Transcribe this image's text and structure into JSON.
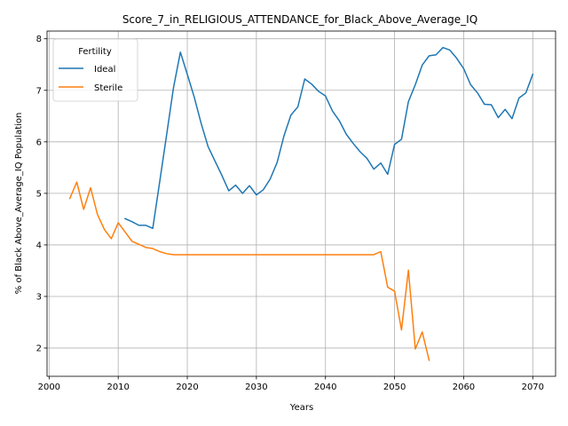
{
  "chart_data": {
    "type": "line",
    "title": "Score_7_in_RELIGIOUS_ATTENDANCE_for_Black_Above_Average_IQ",
    "xlabel": "Years",
    "ylabel": "% of Black Above_Average_IQ Population",
    "xlim": [
      1999.7,
      2073.3
    ],
    "ylim": [
      1.45,
      8.15
    ],
    "xticks": [
      2000,
      2010,
      2020,
      2030,
      2040,
      2050,
      2060,
      2070
    ],
    "yticks": [
      2,
      3,
      4,
      5,
      6,
      7,
      8
    ],
    "grid": true,
    "legend": {
      "title": "Fertility",
      "placement": "top-left"
    },
    "series": [
      {
        "name": "Ideal",
        "color": "#1f77b4",
        "x": [
          2011,
          2012,
          2013,
          2014,
          2015,
          2016,
          2017,
          2018,
          2019,
          2020,
          2021,
          2022,
          2023,
          2024,
          2025,
          2026,
          2027,
          2028,
          2029,
          2030,
          2031,
          2032,
          2033,
          2034,
          2035,
          2036,
          2037,
          2038,
          2039,
          2040,
          2041,
          2042,
          2043,
          2044,
          2045,
          2046,
          2047,
          2048,
          2049,
          2050,
          2051,
          2052,
          2053,
          2054,
          2055,
          2056,
          2057,
          2058,
          2059,
          2060,
          2061,
          2062,
          2063,
          2064,
          2065,
          2066,
          2067,
          2068,
          2069,
          2070
        ],
        "values": [
          4.51,
          4.45,
          4.38,
          4.38,
          4.32,
          5.22,
          6.13,
          7.05,
          7.74,
          7.31,
          6.87,
          6.36,
          5.91,
          5.63,
          5.35,
          5.05,
          5.16,
          5.0,
          5.15,
          4.97,
          5.07,
          5.28,
          5.6,
          6.12,
          6.52,
          6.68,
          7.22,
          7.12,
          6.98,
          6.89,
          6.6,
          6.41,
          6.15,
          5.97,
          5.81,
          5.68,
          5.47,
          5.59,
          5.37,
          5.95,
          6.05,
          6.78,
          7.11,
          7.49,
          7.67,
          7.69,
          7.83,
          7.78,
          7.62,
          7.42,
          7.11,
          6.95,
          6.73,
          6.72,
          6.47,
          6.63,
          6.45,
          6.85,
          6.95,
          7.31
        ]
      },
      {
        "name": "Sterile",
        "color": "#ff7f0e",
        "x": [
          2003,
          2004,
          2005,
          2006,
          2007,
          2008,
          2009,
          2010,
          2011,
          2012,
          2013,
          2014,
          2015,
          2016,
          2017,
          2018,
          2019,
          2020,
          2021,
          2022,
          2023,
          2024,
          2025,
          2026,
          2027,
          2028,
          2029,
          2030,
          2031,
          2032,
          2033,
          2034,
          2035,
          2036,
          2037,
          2038,
          2039,
          2040,
          2041,
          2042,
          2043,
          2044,
          2045,
          2046,
          2047,
          2048,
          2049,
          2050,
          2051,
          2052,
          2053,
          2054,
          2055
        ],
        "values": [
          4.9,
          5.22,
          4.69,
          5.11,
          4.59,
          4.3,
          4.12,
          4.43,
          4.25,
          4.07,
          4.01,
          3.95,
          3.93,
          3.87,
          3.83,
          3.81,
          3.81,
          3.81,
          3.81,
          3.81,
          3.81,
          3.81,
          3.81,
          3.81,
          3.81,
          3.81,
          3.81,
          3.81,
          3.81,
          3.81,
          3.81,
          3.81,
          3.81,
          3.81,
          3.81,
          3.81,
          3.81,
          3.81,
          3.81,
          3.81,
          3.81,
          3.81,
          3.81,
          3.81,
          3.81,
          3.87,
          3.18,
          3.1,
          2.35,
          3.51,
          1.98,
          2.31,
          1.76
        ]
      }
    ]
  }
}
